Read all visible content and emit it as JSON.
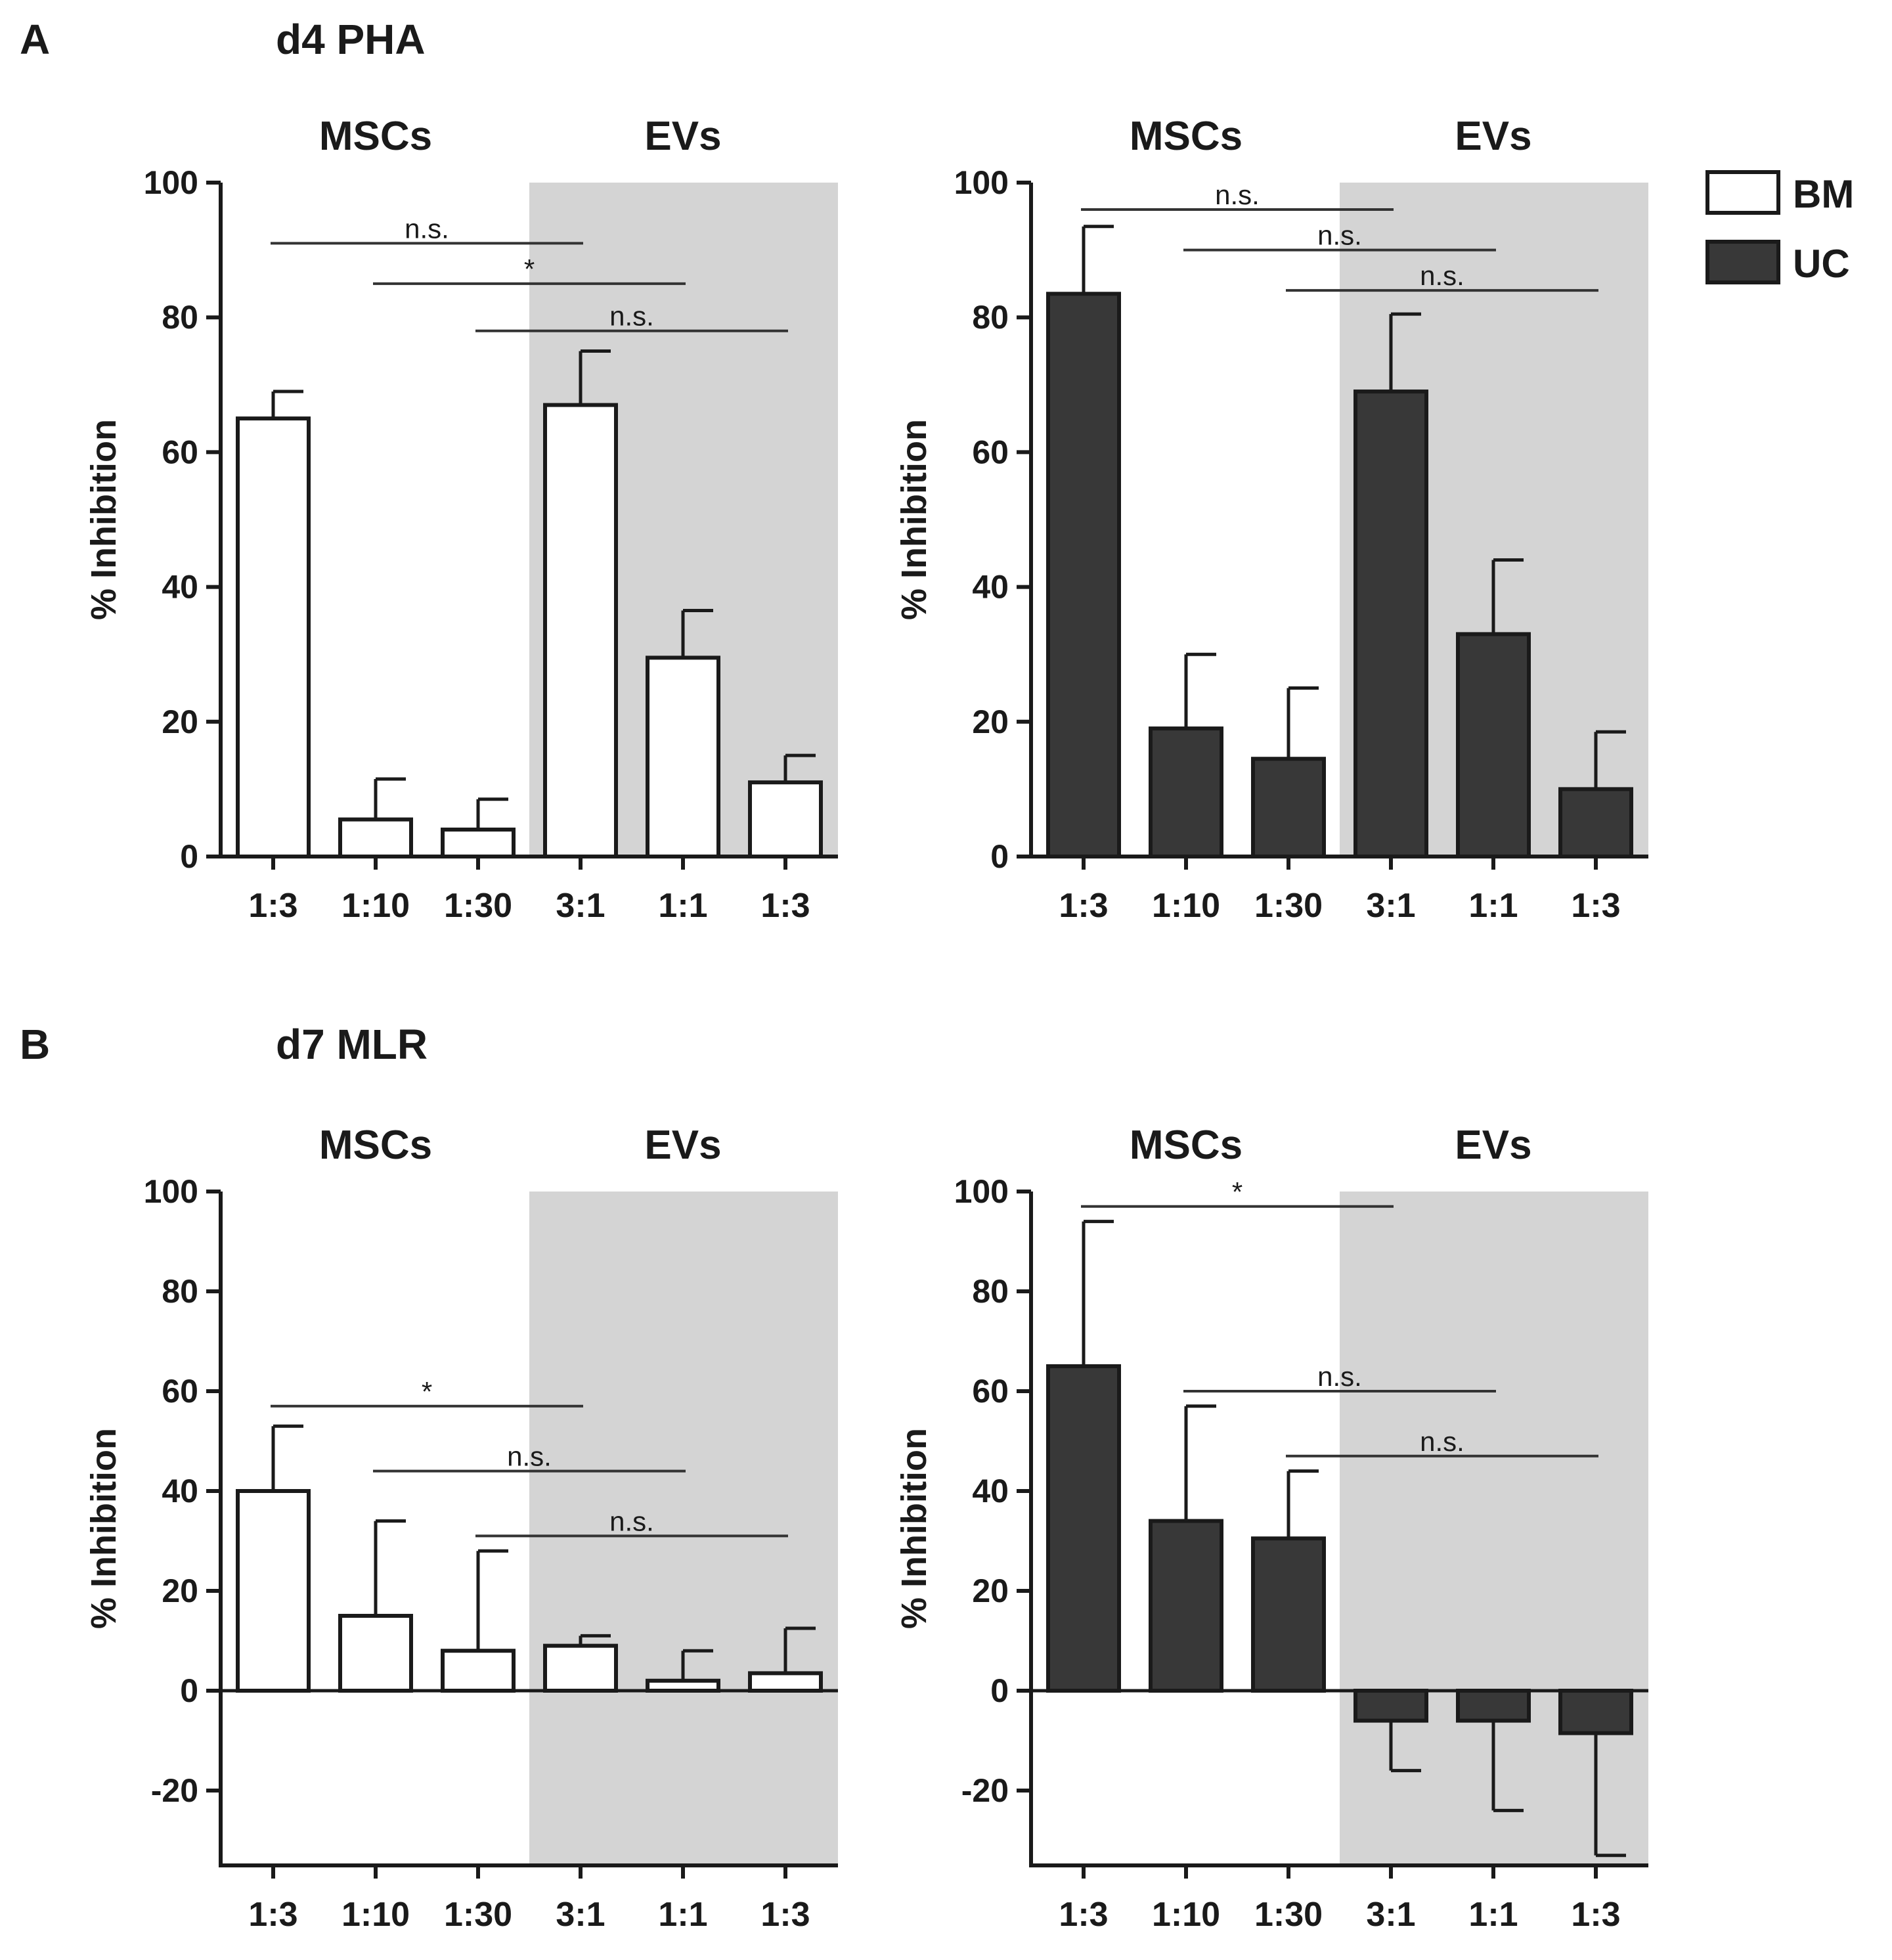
{
  "colors": {
    "bm_fill": "#ffffff",
    "uc_fill": "#383838",
    "bar_stroke": "#1a1a1a",
    "ev_shade": "#d4d4d4",
    "axis": "#1a1a1a",
    "sig_line": "#333333"
  },
  "legend": {
    "items": [
      {
        "label": "BM",
        "color": "#ffffff"
      },
      {
        "label": "UC",
        "color": "#383838"
      }
    ]
  },
  "chart_data": [
    {
      "panel_letter": "A",
      "panel_title": "d4 PHA",
      "type": "bar",
      "series_name": "BM",
      "group_labels": [
        "MSCs",
        "EVs"
      ],
      "shaded_group": "EVs",
      "categories": [
        "1:3",
        "1:10",
        "1:30",
        "3:1",
        "1:1",
        "1:3"
      ],
      "values": [
        65,
        5.5,
        4,
        67,
        29.5,
        11
      ],
      "errors": [
        4,
        6,
        4.5,
        8,
        7,
        4
      ],
      "ylabel": "% Inhibition",
      "ylim": [
        0,
        100
      ],
      "yticks": [
        "0",
        "20",
        "40",
        "60",
        "80",
        "100"
      ],
      "significance": [
        {
          "from": 0,
          "to": 3,
          "label": "n.s.",
          "y": 91
        },
        {
          "from": 1,
          "to": 4,
          "label": "*",
          "y": 85
        },
        {
          "from": 2,
          "to": 5,
          "label": "n.s.",
          "y": 78
        }
      ]
    },
    {
      "panel_letter": "",
      "panel_title": "",
      "type": "bar",
      "series_name": "UC",
      "group_labels": [
        "MSCs",
        "EVs"
      ],
      "shaded_group": "EVs",
      "categories": [
        "1:3",
        "1:10",
        "1:30",
        "3:1",
        "1:1",
        "1:3"
      ],
      "values": [
        83.5,
        19,
        14.5,
        69,
        33,
        10
      ],
      "errors": [
        10,
        11,
        10.5,
        11.5,
        11,
        8.5
      ],
      "ylabel": "% Inhibition",
      "ylim": [
        0,
        100
      ],
      "yticks": [
        "0",
        "20",
        "40",
        "60",
        "80",
        "100"
      ],
      "significance": [
        {
          "from": 0,
          "to": 3,
          "label": "n.s.",
          "y": 96
        },
        {
          "from": 1,
          "to": 4,
          "label": "n.s.",
          "y": 90
        },
        {
          "from": 2,
          "to": 5,
          "label": "n.s.",
          "y": 84
        }
      ]
    },
    {
      "panel_letter": "B",
      "panel_title": "d7 MLR",
      "type": "bar",
      "series_name": "BM",
      "group_labels": [
        "MSCs",
        "EVs"
      ],
      "shaded_group": "EVs",
      "categories": [
        "1:3",
        "1:10",
        "1:30",
        "3:1",
        "1:1",
        "1:3"
      ],
      "values": [
        40,
        15,
        8,
        9,
        2,
        3.5
      ],
      "errors": [
        13,
        19,
        20,
        2,
        6,
        9
      ],
      "ylabel": "% Inhibition",
      "ylim": [
        -35,
        100
      ],
      "yticks": [
        "-20",
        "0",
        "20",
        "40",
        "60",
        "80",
        "100"
      ],
      "significance": [
        {
          "from": 0,
          "to": 3,
          "label": "*",
          "y": 57
        },
        {
          "from": 1,
          "to": 4,
          "label": "n.s.",
          "y": 44
        },
        {
          "from": 2,
          "to": 5,
          "label": "n.s.",
          "y": 31
        }
      ]
    },
    {
      "panel_letter": "",
      "panel_title": "",
      "type": "bar",
      "series_name": "UC",
      "group_labels": [
        "MSCs",
        "EVs"
      ],
      "shaded_group": "EVs",
      "categories": [
        "1:3",
        "1:10",
        "1:30",
        "3:1",
        "1:1",
        "1:3"
      ],
      "values": [
        65,
        34,
        30.5,
        -6,
        -6,
        -8.5
      ],
      "errors": [
        29,
        23,
        13.5,
        10,
        18,
        24.5
      ],
      "ylabel": "% Inhibition",
      "ylim": [
        -35,
        100
      ],
      "yticks": [
        "-20",
        "0",
        "20",
        "40",
        "60",
        "80",
        "100"
      ],
      "significance": [
        {
          "from": 0,
          "to": 3,
          "label": "*",
          "y": 97
        },
        {
          "from": 1,
          "to": 4,
          "label": "n.s.",
          "y": 60
        },
        {
          "from": 2,
          "to": 5,
          "label": "n.s.",
          "y": 47
        }
      ]
    }
  ]
}
